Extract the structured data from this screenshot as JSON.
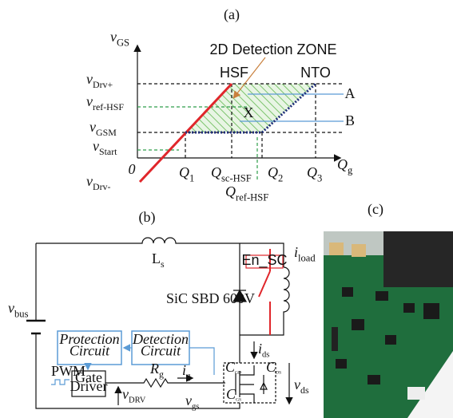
{
  "panel_a": {
    "label": "(a)",
    "y_axis": {
      "main": "v",
      "sub": "GS"
    },
    "x_axis": {
      "main": "Q",
      "sub": "g"
    },
    "origin": "0",
    "zone_label": "2D Detection ZONE",
    "hsf": "HSF",
    "nto": "NTO",
    "line_a": "A",
    "line_b": "B",
    "point": "X",
    "y_levels": [
      {
        "main": "v",
        "sub": "Drv+"
      },
      {
        "main": "v",
        "sub": "ref-HSF"
      },
      {
        "main": "v",
        "sub": "GSM"
      },
      {
        "main": "v",
        "sub": "Start"
      },
      {
        "main": "v",
        "sub": "Drv-"
      }
    ],
    "x_levels": [
      {
        "main": "Q",
        "sub": "1"
      },
      {
        "main": "Q",
        "sub": "sc-HSF"
      },
      {
        "main": "Q",
        "sub": "2"
      },
      {
        "main": "Q",
        "sub": "3"
      },
      {
        "main": "Q",
        "sub": "ref-HSF"
      }
    ]
  },
  "panel_b": {
    "label": "(b)",
    "inductor": {
      "main": "L",
      "sub": "s"
    },
    "source": {
      "main": "v",
      "sub": "bus"
    },
    "diode": "SiC SBD 600V",
    "switch": "En_SC",
    "load": {
      "main": "i",
      "sub": "load"
    },
    "protection": [
      "Protection",
      "Circuit"
    ],
    "detection": [
      "Detection",
      "Circuit"
    ],
    "driver": [
      "Gate",
      "Driver"
    ],
    "pwm": "PWM",
    "resistor": {
      "main": "R",
      "sub": "g"
    },
    "gate_current": {
      "main": "i",
      "sub": "g"
    },
    "drive_voltage": {
      "main": "v",
      "sub": "DRV"
    },
    "gate_voltage": {
      "main": "v",
      "sub": "gs"
    },
    "drain_current": {
      "main": "i",
      "sub": "ds"
    },
    "drain_voltage": {
      "main": "v",
      "sub": "ds"
    },
    "cgd": {
      "main": "C",
      "sub": "GD"
    },
    "cds": {
      "main": "C",
      "sub": "DS"
    },
    "cgs": {
      "main": "C",
      "sub": "GS"
    }
  },
  "panel_c": {
    "label": "(c)"
  }
}
